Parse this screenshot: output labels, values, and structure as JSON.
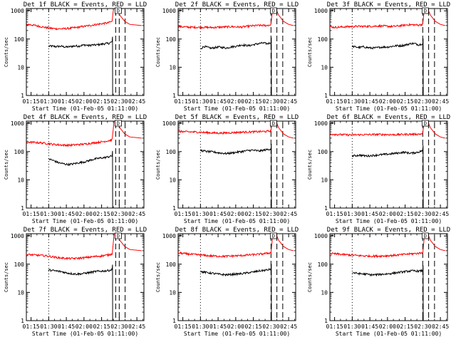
{
  "figure": {
    "start_time_label": "Start Time (01-Feb-05 01:11:00)",
    "ylabel": "Counts/sec",
    "colors": {
      "events": "#000000",
      "lld": "#ff0000",
      "axes": "#000000",
      "background": "#ffffff"
    },
    "x_ticks": [
      "01:15",
      "01:30",
      "01:45",
      "02:00",
      "02:15",
      "02:30",
      "02:45"
    ],
    "y_ticks": [
      "1",
      "10",
      "100",
      "1000"
    ],
    "xlim_minutes": [
      0,
      100
    ],
    "ylim": [
      1,
      1200
    ],
    "y_scale": "log",
    "time_origin": "01:11:00",
    "dotted_marker_minutes": 19,
    "box_label": "D"
  },
  "chart_data": [
    {
      "type": "line",
      "title": "Det 1f BLACK = Events, RED = LLD",
      "series": [
        {
          "name": "Events",
          "color": "#000000",
          "start_min": 19,
          "values": [
            55,
            56,
            54,
            55,
            55,
            52,
            53,
            55,
            57,
            56,
            60,
            62,
            58,
            62,
            61,
            64,
            66,
            69,
            70,
            80
          ]
        },
        {
          "name": "LLD",
          "color": "#ff0000",
          "start_min": 0,
          "values": [
            330,
            320,
            300,
            280,
            260,
            245,
            235,
            230,
            230,
            235,
            245,
            255,
            270,
            285,
            300,
            320,
            335,
            355,
            370,
            420
          ]
        }
      ],
      "spike_start_min": 73,
      "dashed_min": [
        76,
        79,
        84
      ]
    },
    {
      "type": "line",
      "title": "Det 2f BLACK = Events, RED = LLD",
      "series": [
        {
          "name": "Events",
          "color": "#000000",
          "start_min": 19,
          "values": [
            45,
            55,
            50,
            47,
            50,
            52,
            50,
            48,
            52,
            54,
            57,
            62,
            60,
            58,
            62,
            66,
            70,
            72,
            68,
            75
          ]
        },
        {
          "name": "LLD",
          "color": "#ff0000",
          "start_min": 0,
          "values": [
            280,
            270,
            265,
            260,
            260,
            262,
            258,
            255,
            260,
            265,
            270,
            275,
            268,
            265,
            280,
            290,
            300,
            305,
            300,
            320
          ]
        }
      ],
      "spike_start_min": 79,
      "dashed_min": [
        79,
        84,
        89
      ]
    },
    {
      "type": "line",
      "title": "Det 3f BLACK = Events, RED = LLD",
      "series": [
        {
          "name": "Events",
          "color": "#000000",
          "start_min": 19,
          "values": [
            55,
            52,
            50,
            53,
            50,
            48,
            48,
            50,
            52,
            52,
            53,
            56,
            58,
            58,
            60,
            65,
            70,
            68,
            62,
            70
          ]
        },
        {
          "name": "LLD",
          "color": "#ff0000",
          "start_min": 0,
          "values": [
            270,
            260,
            265,
            270,
            275,
            280,
            282,
            280,
            282,
            285,
            290,
            288,
            280,
            280,
            290,
            305,
            320,
            320,
            310,
            330
          ]
        }
      ],
      "spike_start_min": 79,
      "dashed_min": [
        79,
        84,
        89
      ]
    },
    {
      "type": "line",
      "title": "Det 4f BLACK = Events, RED = LLD",
      "series": [
        {
          "name": "Events",
          "color": "#000000",
          "start_min": 19,
          "values": [
            55,
            50,
            45,
            40,
            38,
            36,
            35,
            36,
            38,
            40,
            42,
            44,
            48,
            52,
            55,
            58,
            60,
            62,
            66,
            70
          ]
        },
        {
          "name": "LLD",
          "color": "#ff0000",
          "start_min": 0,
          "values": [
            220,
            215,
            210,
            205,
            200,
            190,
            180,
            175,
            170,
            168,
            170,
            175,
            180,
            185,
            195,
            205,
            215,
            225,
            240,
            260
          ]
        }
      ],
      "spike_start_min": 73,
      "dashed_min": [
        76,
        79,
        84
      ]
    },
    {
      "type": "line",
      "title": "Det 5f BLACK = Events, RED = LLD",
      "series": [
        {
          "name": "Events",
          "color": "#000000",
          "start_min": 19,
          "values": [
            110,
            105,
            100,
            98,
            95,
            90,
            88,
            85,
            88,
            92,
            96,
            100,
            105,
            110,
            112,
            108,
            105,
            112,
            118,
            125
          ]
        },
        {
          "name": "LLD",
          "color": "#ff0000",
          "start_min": 0,
          "values": [
            520,
            510,
            500,
            495,
            490,
            480,
            470,
            460,
            455,
            455,
            460,
            470,
            480,
            490,
            495,
            500,
            505,
            510,
            520,
            540
          ]
        }
      ],
      "spike_start_min": 79,
      "dashed_min": [
        79,
        84,
        89
      ]
    },
    {
      "type": "line",
      "title": "Det 6f BLACK = Events, RED = LLD",
      "series": [
        {
          "name": "Events",
          "color": "#000000",
          "start_min": 19,
          "values": [
            70,
            72,
            75,
            72,
            70,
            72,
            74,
            76,
            78,
            80,
            82,
            85,
            88,
            92,
            95,
            90,
            88,
            92,
            98,
            110
          ]
        },
        {
          "name": "LLD",
          "color": "#ff0000",
          "start_min": 0,
          "values": [
            420,
            410,
            400,
            395,
            390,
            392,
            395,
            398,
            400,
            402,
            405,
            402,
            400,
            398,
            400,
            405,
            410,
            412,
            415,
            425
          ]
        }
      ],
      "spike_start_min": 79,
      "dashed_min": [
        79,
        84,
        89
      ]
    },
    {
      "type": "line",
      "title": "Det 7f BLACK = Events, RED = LLD",
      "series": [
        {
          "name": "Events",
          "color": "#000000",
          "start_min": 19,
          "values": [
            62,
            60,
            58,
            56,
            54,
            50,
            48,
            46,
            45,
            45,
            46,
            48,
            50,
            52,
            55,
            56,
            57,
            58,
            60,
            64
          ]
        },
        {
          "name": "LLD",
          "color": "#ff0000",
          "start_min": 0,
          "values": [
            220,
            215,
            210,
            205,
            200,
            190,
            180,
            170,
            165,
            160,
            158,
            160,
            165,
            170,
            178,
            185,
            192,
            200,
            210,
            230
          ]
        }
      ],
      "spike_start_min": 73,
      "dashed_min": [
        76,
        79,
        84
      ]
    },
    {
      "type": "line",
      "title": "Det 8f BLACK = Events, RED = LLD",
      "series": [
        {
          "name": "Events",
          "color": "#000000",
          "start_min": 19,
          "values": [
            55,
            52,
            50,
            48,
            46,
            44,
            43,
            42,
            43,
            44,
            45,
            46,
            48,
            50,
            52,
            55,
            58,
            60,
            62,
            68
          ]
        },
        {
          "name": "LLD",
          "color": "#ff0000",
          "start_min": 0,
          "values": [
            250,
            240,
            230,
            222,
            215,
            208,
            200,
            195,
            192,
            190,
            192,
            195,
            198,
            202,
            210,
            215,
            222,
            230,
            240,
            255
          ]
        }
      ],
      "spike_start_min": 79,
      "dashed_min": [
        79,
        84,
        89
      ]
    },
    {
      "type": "line",
      "title": "Det 9f BLACK = Events, RED = LLD",
      "series": [
        {
          "name": "Events",
          "color": "#000000",
          "start_min": 19,
          "values": [
            50,
            48,
            46,
            45,
            44,
            42,
            42,
            43,
            44,
            45,
            46,
            48,
            50,
            52,
            54,
            56,
            58,
            58,
            56,
            60
          ]
        },
        {
          "name": "LLD",
          "color": "#ff0000",
          "start_min": 0,
          "values": [
            240,
            232,
            225,
            218,
            212,
            206,
            200,
            196,
            194,
            193,
            194,
            196,
            200,
            205,
            212,
            220,
            228,
            235,
            242,
            255
          ]
        }
      ],
      "spike_start_min": 79,
      "dashed_min": [
        79,
        84,
        89
      ]
    }
  ]
}
